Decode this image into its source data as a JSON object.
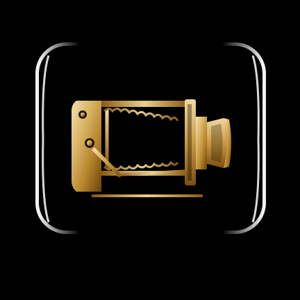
{
  "icon": {
    "name": "vintage-bellows-camera-icon",
    "style": "gold-gradient",
    "colors": {
      "background": "#000000",
      "frame_gradient": [
        "#000000",
        "#1a1a1a",
        "#ffffff"
      ],
      "gold_light": "#f6dfae",
      "gold_mid": "#c9a24a",
      "gold_dark": "#8a5a12",
      "gold_shadow": "#6b420a"
    }
  }
}
